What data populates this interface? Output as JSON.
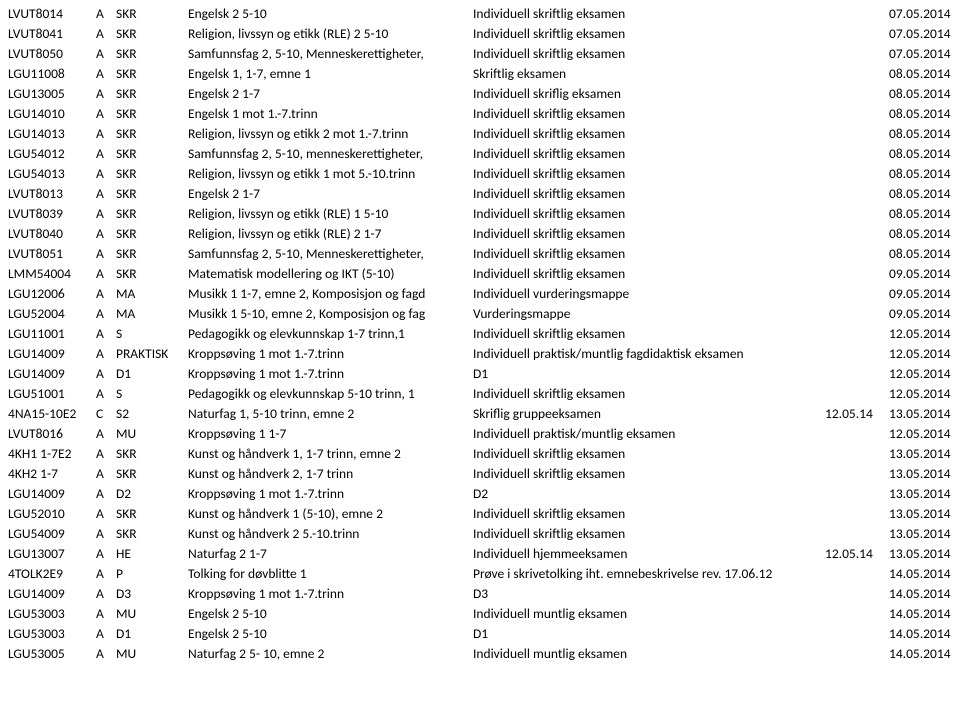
{
  "columns": [
    "code",
    "grp",
    "type",
    "course",
    "exam",
    "date1",
    "date2"
  ],
  "rows": [
    [
      "LVUT8014",
      "A",
      "SKR",
      "Engelsk 2 5-10",
      "Individuell skriftlig eksamen",
      "",
      "07.05.2014"
    ],
    [
      "LVUT8041",
      "A",
      "SKR",
      "Religion, livssyn og etikk (RLE) 2 5-10",
      "Individuell skriftlig eksamen",
      "",
      "07.05.2014"
    ],
    [
      "LVUT8050",
      "A",
      "SKR",
      "Samfunnsfag 2, 5-10, Menneskerettigheter,",
      "Individuell skriftlig eksamen",
      "",
      "07.05.2014"
    ],
    [
      "LGU11008",
      "A",
      "SKR",
      "Engelsk 1, 1-7, emne 1",
      "Skriftlig eksamen",
      "",
      "08.05.2014"
    ],
    [
      "LGU13005",
      "A",
      "SKR",
      "Engelsk 2 1-7",
      "Individuell skriflig eksamen",
      "",
      "08.05.2014"
    ],
    [
      "LGU14010",
      "A",
      "SKR",
      "Engelsk 1 mot 1.-7.trinn",
      "Individuell skriftlig eksamen",
      "",
      "08.05.2014"
    ],
    [
      "LGU14013",
      "A",
      "SKR",
      "Religion, livssyn og etikk 2 mot 1.-7.trinn",
      "Individuell skriftlig eksamen",
      "",
      "08.05.2014"
    ],
    [
      "LGU54012",
      "A",
      "SKR",
      "Samfunnsfag 2, 5-10, menneskerettigheter,",
      "Individuell skriftlig eksamen",
      "",
      "08.05.2014"
    ],
    [
      "LGU54013",
      "A",
      "SKR",
      "Religion, livssyn og etikk 1 mot 5.-10.trinn",
      "Individuell skriftlig eksamen",
      "",
      "08.05.2014"
    ],
    [
      "LVUT8013",
      "A",
      "SKR",
      "Engelsk 2 1-7",
      "Individuell skriftlig eksamen",
      "",
      "08.05.2014"
    ],
    [
      "LVUT8039",
      "A",
      "SKR",
      "Religion, livssyn og etikk (RLE) 1 5-10",
      "Individuell skriftlig eksamen",
      "",
      "08.05.2014"
    ],
    [
      "LVUT8040",
      "A",
      "SKR",
      "Religion, livssyn og etikk (RLE) 2 1-7",
      "Individuell skriftlig eksamen",
      "",
      "08.05.2014"
    ],
    [
      "LVUT8051",
      "A",
      "SKR",
      "Samfunnsfag 2, 5-10, Menneskerettigheter,",
      "Individuell skriftlig eksamen",
      "",
      "08.05.2014"
    ],
    [
      "LMM54004",
      "A",
      "SKR",
      "Matematisk modellering og IKT (5-10)",
      "Individuell skriftlig eksamen",
      "",
      "09.05.2014"
    ],
    [
      "LGU12006",
      "A",
      "MA",
      "Musikk 1 1-7, emne 2, Komposisjon og fagd",
      "Individuell vurderingsmappe",
      "",
      "09.05.2014"
    ],
    [
      "LGU52004",
      "A",
      "MA",
      "Musikk 1 5-10, emne 2, Komposisjon og fag",
      "Vurderingsmappe",
      "",
      "09.05.2014"
    ],
    [
      "LGU11001",
      "A",
      "S",
      "Pedagogikk og elevkunnskap 1-7 trinn,1",
      "Individuell skriftlig eksamen",
      "",
      "12.05.2014"
    ],
    [
      "LGU14009",
      "A",
      "PRAKTISK",
      "Kroppsøving 1 mot 1.-7.trinn",
      "Individuell praktisk/muntlig fagdidaktisk eksamen",
      "",
      "12.05.2014"
    ],
    [
      "LGU14009",
      "A",
      "D1",
      "Kroppsøving 1 mot 1.-7.trinn",
      "D1",
      "",
      "12.05.2014"
    ],
    [
      "LGU51001",
      "A",
      "S",
      "Pedagogikk og elevkunnskap 5-10 trinn, 1",
      "Individuell skriftlig eksamen",
      "",
      "12.05.2014"
    ],
    [
      "4NA15-10E2",
      "C",
      "S2",
      "Naturfag 1, 5-10 trinn, emne 2",
      "Skriflig gruppeeksamen",
      "12.05.14",
      "13.05.2014"
    ],
    [
      "LVUT8016",
      "A",
      "MU",
      "Kroppsøving 1 1-7",
      "Individuell praktisk/muntlig eksamen",
      "",
      "12.05.2014"
    ],
    [
      "4KH1 1-7E2",
      "A",
      "SKR",
      "Kunst og håndverk 1, 1-7 trinn, emne 2",
      "Individuell skriftlig eksamen",
      "",
      "13.05.2014"
    ],
    [
      "4KH2 1-7",
      "A",
      "SKR",
      "Kunst og håndverk 2, 1-7 trinn",
      "Individuell skriftlig eksamen",
      "",
      "13.05.2014"
    ],
    [
      "LGU14009",
      "A",
      "D2",
      "Kroppsøving 1 mot 1.-7.trinn",
      "D2",
      "",
      "13.05.2014"
    ],
    [
      "LGU52010",
      "A",
      "SKR",
      "Kunst og håndverk 1 (5-10), emne 2",
      "Individuell skriftlig eksamen",
      "",
      "13.05.2014"
    ],
    [
      "LGU54009",
      "A",
      "SKR",
      "Kunst og håndverk 2 5.-10.trinn",
      "Individuell skriftlig eksamen",
      "",
      "13.05.2014"
    ],
    [
      "LGU13007",
      "A",
      "HE",
      "Naturfag 2 1-7",
      "Individuell hjemmeeksamen",
      "12.05.14",
      "13.05.2014"
    ],
    [
      "4TOLK2E9",
      "A",
      "P",
      "Tolking for døvblitte 1",
      "Prøve i skrivetolking iht. emnebeskrivelse rev. 17.06.12",
      "",
      "14.05.2014"
    ],
    [
      "LGU14009",
      "A",
      "D3",
      "Kroppsøving 1 mot 1.-7.trinn",
      "D3",
      "",
      "14.05.2014"
    ],
    [
      "LGU53003",
      "A",
      "MU",
      "Engelsk 2 5-10",
      "Individuell muntlig eksamen",
      "",
      "14.05.2014"
    ],
    [
      "LGU53003",
      "A",
      "D1",
      "Engelsk 2 5-10",
      "D1",
      "",
      "14.05.2014"
    ],
    [
      "LGU53005",
      "A",
      "MU",
      "Naturfag 2 5- 10, emne 2",
      "Individuell muntlig eksamen",
      "",
      "14.05.2014"
    ]
  ]
}
